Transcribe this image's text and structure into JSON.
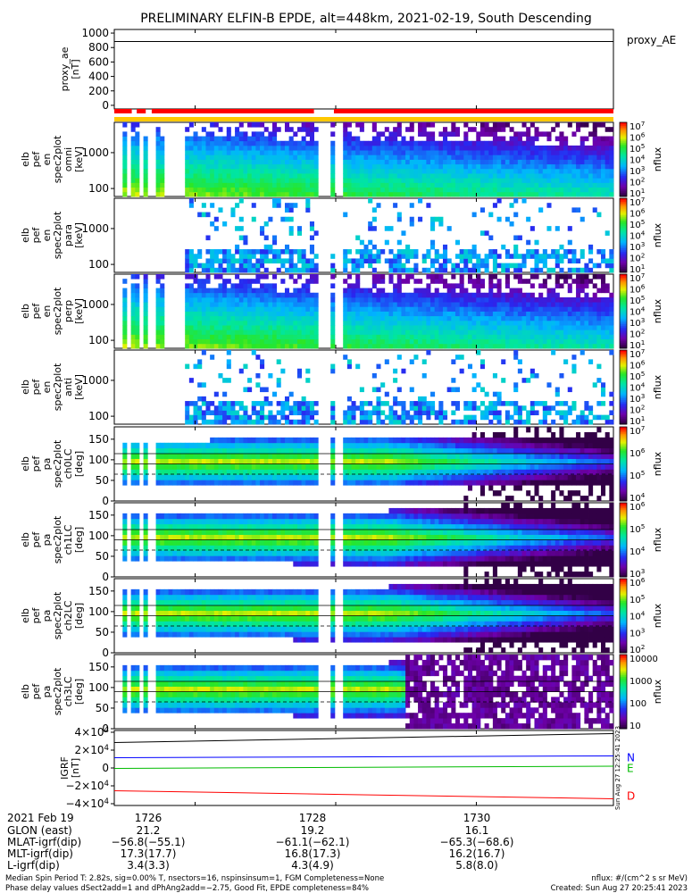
{
  "title": "PRELIMINARY ELFIN-B EPDE, alt=448km, 2021-02-19, South Descending",
  "chart_data": {
    "type": "heatmap",
    "time_axis": {
      "ticks": [
        "1726",
        "1728",
        "1730"
      ]
    },
    "panels": [
      {
        "id": "proxy_ae",
        "kind": "line",
        "ylabel": [
          "proxy_ae",
          "[nT]"
        ],
        "yticks": [
          "1000",
          "800",
          "600",
          "400",
          "200",
          "0"
        ],
        "ylim": [
          -50,
          1050
        ],
        "legend": "proxy_AE",
        "series": [
          {
            "values_y": [
              883
            ]
          }
        ]
      },
      {
        "id": "status-bar",
        "kind": "status",
        "red_segments": [
          [
            0.0,
            0.035
          ],
          [
            0.045,
            0.063
          ],
          [
            0.075,
            0.4
          ],
          [
            0.44,
            1.0
          ]
        ],
        "gold_segments": [
          [
            0.0,
            1.0
          ]
        ]
      },
      {
        "id": "pef-en-omni",
        "kind": "spectrogram",
        "ylabel": [
          "elb",
          "pef",
          "en",
          "spec2plot",
          "omni",
          "[keV]"
        ],
        "yticks": [
          "1000",
          "100"
        ],
        "ylog": true,
        "ylim": [
          60,
          7000
        ],
        "cbar_label": "nflux",
        "cbar_ticks": [
          "10^7",
          "10^6",
          "10^5",
          "10^4",
          "10^3",
          "10^2",
          "10^1"
        ]
      },
      {
        "id": "pef-en-para",
        "kind": "spectrogram",
        "ylabel": [
          "elb",
          "pef",
          "en",
          "spec2plot",
          "para",
          "[keV]"
        ],
        "yticks": [
          "1000",
          "100"
        ],
        "ylog": true,
        "ylim": [
          60,
          7000
        ],
        "cbar_label": "nflux",
        "cbar_ticks": [
          "10^7",
          "10^6",
          "10^5",
          "10^4",
          "10^3",
          "10^2",
          "10^1"
        ]
      },
      {
        "id": "pef-en-perp",
        "kind": "spectrogram",
        "ylabel": [
          "elb",
          "pef",
          "en",
          "spec2plot",
          "perp",
          "[keV]"
        ],
        "yticks": [
          "1000",
          "100"
        ],
        "ylog": true,
        "ylim": [
          60,
          7000
        ],
        "cbar_label": "nflux",
        "cbar_ticks": [
          "10^7",
          "10^6",
          "10^5",
          "10^4",
          "10^3",
          "10^2",
          "10^1"
        ]
      },
      {
        "id": "pef-en-anti",
        "kind": "spectrogram",
        "ylabel": [
          "elb",
          "pef",
          "en",
          "spec2plot",
          "anti",
          "[keV]"
        ],
        "yticks": [
          "1000",
          "100"
        ],
        "ylog": true,
        "ylim": [
          60,
          7000
        ],
        "cbar_label": "nflux",
        "cbar_ticks": [
          "10^7",
          "10^6",
          "10^5",
          "10^4",
          "10^3",
          "10^2",
          "10^1"
        ]
      },
      {
        "id": "pef-pa-ch0LC",
        "kind": "spectrogram",
        "ylabel": [
          "elb",
          "pef",
          "pa",
          "spec2plot",
          "ch0LC",
          "[deg]"
        ],
        "yticks": [
          "150",
          "100",
          "50",
          "0"
        ],
        "ylim": [
          0,
          180
        ],
        "cbar_label": "nflux",
        "cbar_ticks": [
          "10^7",
          "10^6",
          "10^5",
          "10^4"
        ]
      },
      {
        "id": "pef-pa-ch1LC",
        "kind": "spectrogram",
        "ylabel": [
          "elb",
          "pef",
          "pa",
          "spec2plot",
          "ch1LC",
          "[deg]"
        ],
        "yticks": [
          "150",
          "100",
          "50",
          "0"
        ],
        "ylim": [
          0,
          180
        ],
        "cbar_label": "nflux",
        "cbar_ticks": [
          "10^6",
          "10^5",
          "10^4",
          "10^3"
        ]
      },
      {
        "id": "pef-pa-ch2LC",
        "kind": "spectrogram",
        "ylabel": [
          "elb",
          "pef",
          "pa",
          "spec2plot",
          "ch2LC",
          "[deg]"
        ],
        "yticks": [
          "150",
          "100",
          "50",
          "0"
        ],
        "ylim": [
          0,
          180
        ],
        "cbar_label": "nflux",
        "cbar_ticks": [
          "10^6",
          "10^5",
          "10^4",
          "10^3",
          "10^2"
        ]
      },
      {
        "id": "pef-pa-ch3LC",
        "kind": "spectrogram",
        "ylabel": [
          "elb",
          "pef",
          "pa",
          "spec2plot",
          "ch3LC",
          "[deg]"
        ],
        "yticks": [
          "150",
          "100",
          "50",
          "0"
        ],
        "ylim": [
          0,
          180
        ],
        "cbar_label": "nflux",
        "cbar_ticks": [
          "10000",
          "1000",
          "100",
          "10"
        ]
      },
      {
        "id": "igrf",
        "kind": "line",
        "ylabel": [
          "IGRF",
          "[nT]"
        ],
        "yticks": [
          "4×10^4",
          "2×10^4",
          "0",
          "−2×10^4",
          "−4×10^4"
        ],
        "ylim": [
          -42000,
          42000
        ],
        "series": [
          {
            "name": "N",
            "color": "#0000ff",
            "values_y": [
              11500,
              13500
            ]
          },
          {
            "name": "E",
            "color": "#00bb00",
            "values_y": [
              -500,
              2000
            ]
          },
          {
            "name": "D",
            "color": "#ff0000",
            "values_y": [
              -25500,
              -34500
            ]
          },
          {
            "name": "",
            "color": "#000000",
            "values_y": [
              28500,
              38500
            ]
          }
        ]
      }
    ]
  },
  "side_stamp": "Sun Aug 27 12:25:41 2023",
  "ephem": {
    "date": "2021 Feb 19",
    "rows": [
      {
        "label": "GLON (east)",
        "values": [
          "21.2",
          "19.2",
          "16.1"
        ]
      },
      {
        "label": "MLAT-igrf(dip)",
        "values": [
          "−56.8(−55.1)",
          "−61.1(−62.1)",
          "−65.3(−68.6)"
        ]
      },
      {
        "label": "MLT-igrf(dip)",
        "values": [
          "17.3(17.7)",
          "16.8(17.3)",
          "16.2(16.7)"
        ]
      },
      {
        "label": "L-igrf(dip)",
        "values": [
          "3.4(3.3)",
          "4.3(4.9)",
          "5.8(8.0)"
        ]
      }
    ]
  },
  "footer": {
    "line1": "Median Spin Period T: 2.82s, sig=0.00% T, nsectors=16, nspinsinsum=1, FGM Completeness=None",
    "line2": "Phase delay values dSect2add=1 and dPhAng2add=−2.75, Good Fit, EPDE completeness=84%",
    "right1": "nflux: #/(cm^2 s sr MeV)",
    "right2": "Created: Sun Aug 27 20:25:41 2023"
  },
  "colors": {
    "frame": "#000000",
    "status_red": "#ff0000",
    "status_gold": "#ffc800"
  }
}
